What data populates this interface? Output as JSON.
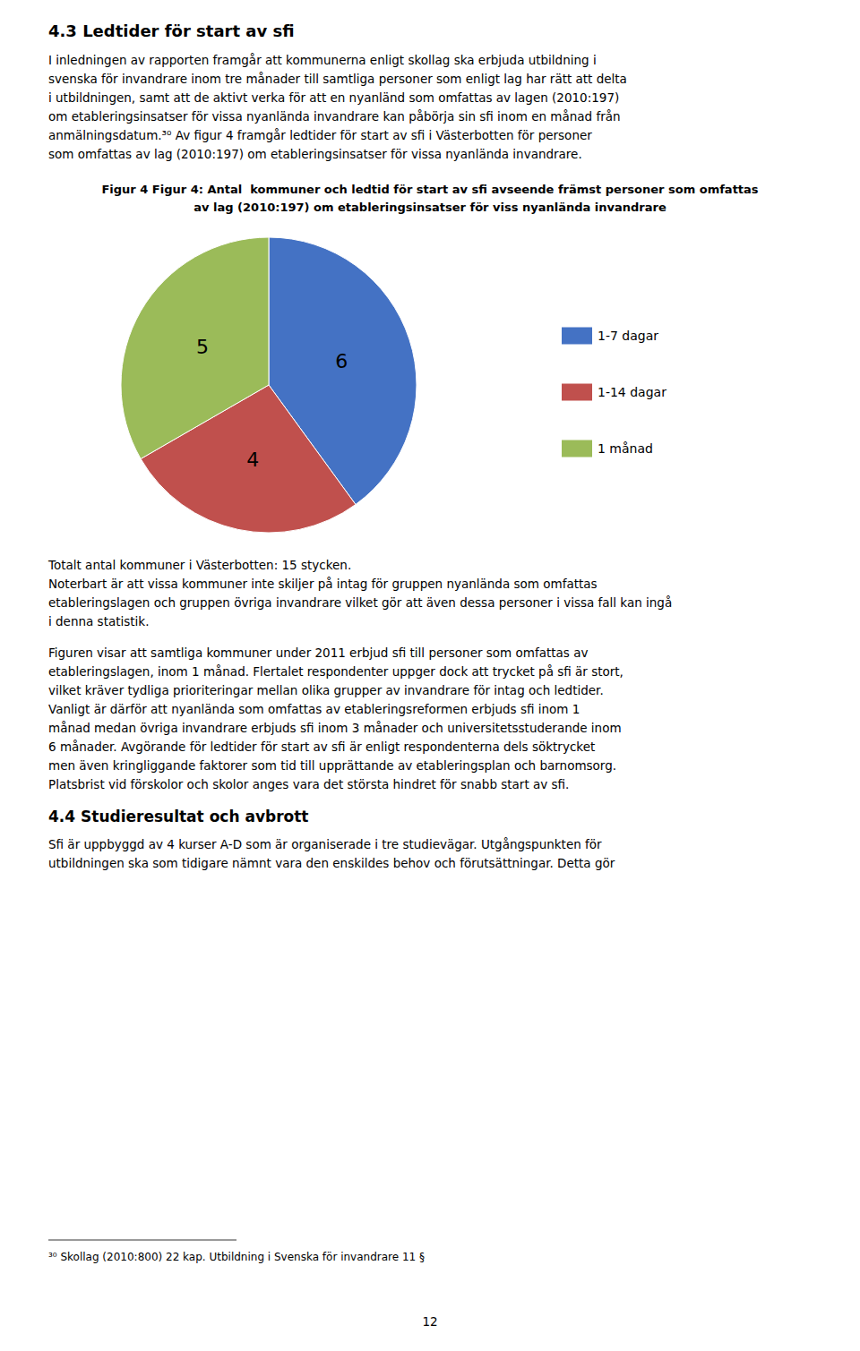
{
  "chart_data": {
    "type": "pie",
    "title": "Figur 4 Figur 4: Antal  kommuner och ledtid för start av sfi avseende främst personer som omfattas\nav lag (2010:197) om etableringsinsatser för viss nyanlända invandrare",
    "categories": [
      "1-7 dagar",
      "1-14 dagar",
      "1 månad"
    ],
    "values": [
      6,
      4,
      5
    ],
    "colors": [
      "#4472C4",
      "#C0504D",
      "#9BBB59"
    ],
    "data_labels": true,
    "legend": "right",
    "annotations": [
      "4.3 Ledtider för start av sfi",
      "I inledningen av rapporten framgår att kommunerna enligt skollag ska erbjuda utbildning i\nsvenska för invandrare inom tre månader till samtliga personer som enligt lag har rätt att delta\ni utbildningen, samt att de aktivt verka för att en nyanländ som omfattas av lagen (2010:197)\nom etableringsinsatser för vissa nyanlända invandrare kan påbörja sin sfi inom en månad från\nanmälningsdatum.³⁰ Av figur 4 framgår ledtider för start av sfi i Västerbotten för personer\nsom omfattas av lag (2010:197) om etableringsinsatser för vissa nyanlända invandrare.",
      "Totalt antal kommuner i Västerbotten: 15 stycken.\nNoterbart är att vissa kommuner inte skiljer på intag för gruppen nyanlända som omfattas\netableringslagen och gruppen övriga invandrare vilket gör att även dessa personer i vissa fall kan ingå\ni denna statistik.",
      "Figuren visar att samtliga kommuner under 2011 erbjud sfi till personer som omfattas av\netableringslagen, inom 1 månad. Flertalet respondenter uppger dock att trycket på sfi är stort,\nvilket kräver tydliga prioriteringar mellan olika grupper av invandrare för intag och ledtider.\nVanligt är därför att nyanlända som omfattas av etableringsreformen erbjuds sfi inom 1\nmånad medan övriga invandrare erbjuds sfi inom 3 månader och universitetsstuderande inom\n6 månader. Avgörande för ledtider för start av sfi är enligt respondenterna dels söktrycket\nmen även kringliggande faktorer som tid till upprättande av etableringsplan och barnomsorg.\nPlatsbrist vid förskolor och skolor anges vara det största hindret för snabb start av sfi.",
      "4.4 Studieresultat och avbrott",
      "Sfi är uppbyggd av 4 kurser A-D som är organiserade i tre studievägar. Utgångspunkten för\nutbildningen ska som tidigare nämnt vara den enskildes behov och förutsättningar. Detta gör",
      "³⁰ Skollag (2010:800) 22 kap. Utbildning i Svenska för invandrare 11 §",
      "12"
    ]
  }
}
